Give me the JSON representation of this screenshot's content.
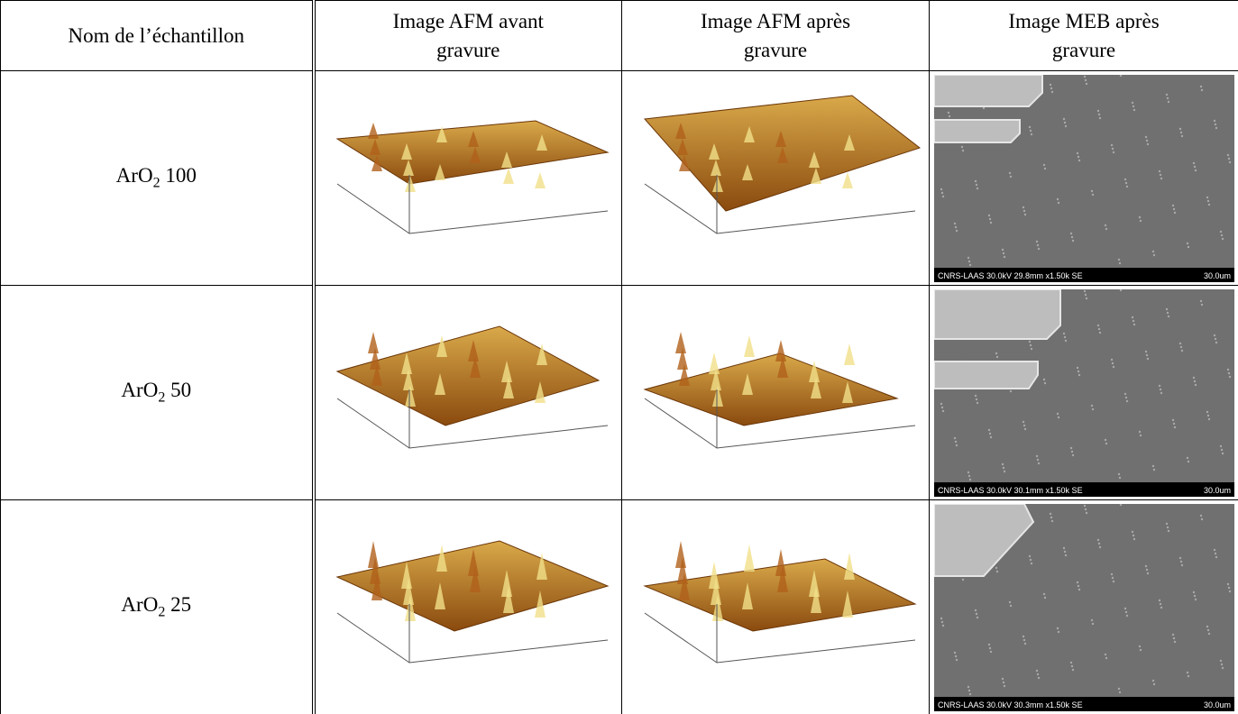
{
  "table": {
    "header": [
      "Nom de l’échantillon",
      "Image AFM avant gravure",
      "Image AFM après gravure",
      "Image MEB après gravure"
    ],
    "rows": [
      {
        "name": "ArO",
        "subscript": "2",
        "ratio": "100",
        "sem_caption": "CNRS-LAAS 30.0kV 29.8mm x1.50k SE",
        "sem_scale": "30.0um"
      },
      {
        "name": "ArO",
        "subscript": "2",
        "ratio": "50",
        "sem_caption": "CNRS-LAAS 30.0kV 30.1mm x1.50k SE",
        "sem_scale": "30.0um"
      },
      {
        "name": "ArO",
        "subscript": "2",
        "ratio": "25",
        "sem_caption": "CNRS-LAAS 30.0kV 30.3mm x1.50k SE",
        "sem_scale": "30.0um"
      }
    ]
  }
}
